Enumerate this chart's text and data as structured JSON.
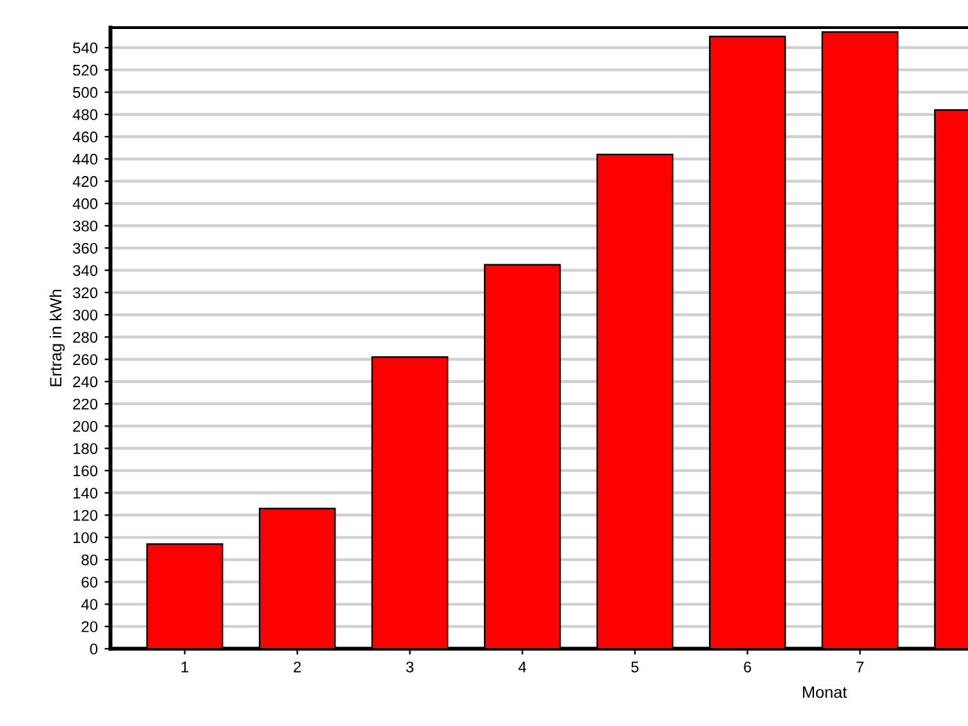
{
  "chart_data": {
    "type": "bar",
    "xlabel": "Monat",
    "ylabel": "Ertrag in kWh",
    "categories": [
      "1",
      "2",
      "3",
      "4",
      "5",
      "6",
      "7",
      null
    ],
    "values": [
      94,
      126,
      262,
      345,
      444,
      550,
      554,
      484
    ],
    "color": "#ff0000",
    "ylim": [
      0,
      558
    ],
    "yticks": [
      0,
      20,
      40,
      60,
      80,
      100,
      120,
      140,
      160,
      180,
      200,
      220,
      240,
      260,
      280,
      300,
      320,
      340,
      360,
      380,
      400,
      420,
      440,
      460,
      480,
      500,
      520,
      540
    ],
    "grid": "y"
  }
}
